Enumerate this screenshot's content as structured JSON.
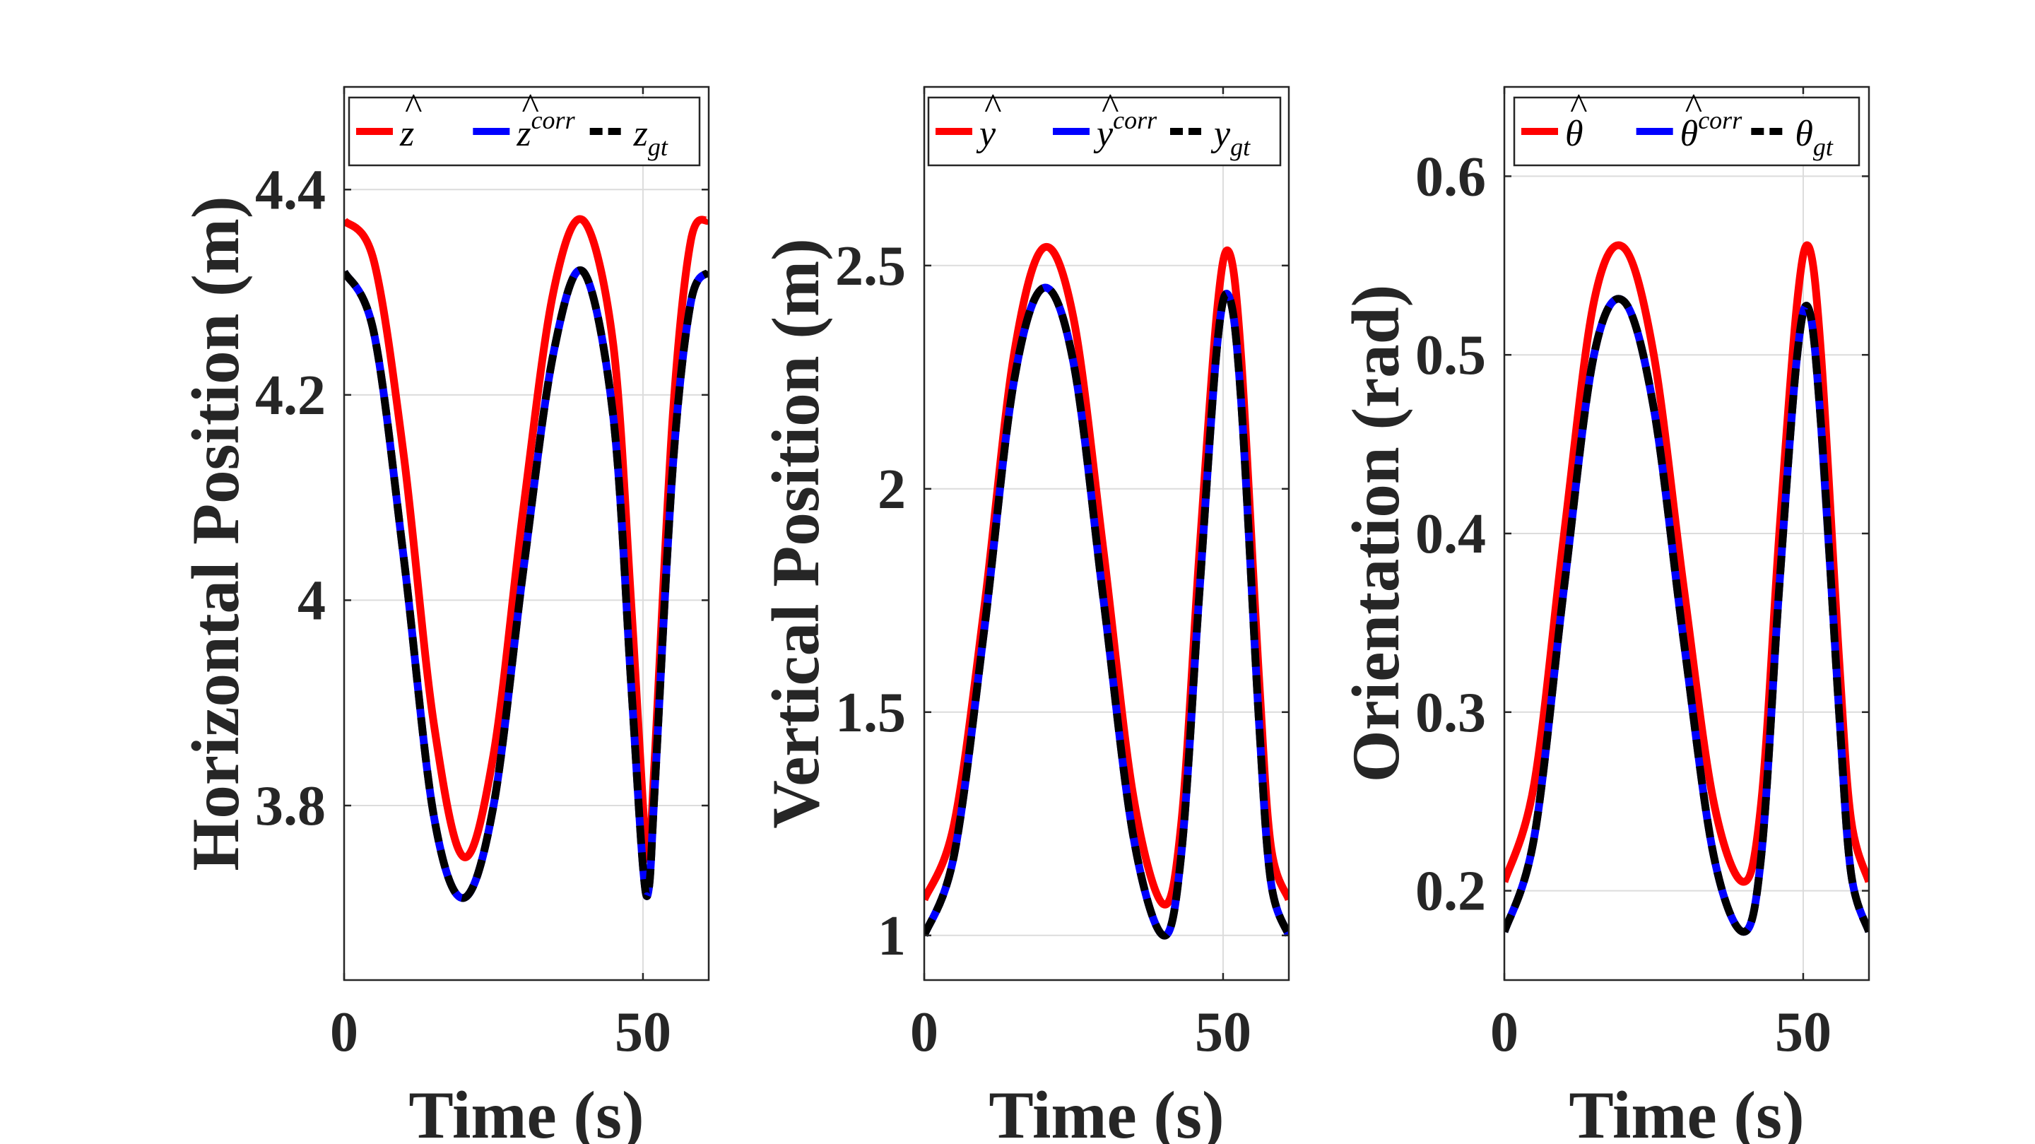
{
  "colors": {
    "estimate": "#ff0000",
    "corrected": "#0000ff",
    "ground_truth": "#000000"
  },
  "chart_data": [
    {
      "type": "line",
      "title": "",
      "xlabel": "Time (s)",
      "ylabel": "Horizontal Position (m)",
      "xlim": [
        0,
        61
      ],
      "ylim": [
        3.63,
        4.5
      ],
      "xticks": [
        0,
        50
      ],
      "xtick_labels": [
        "0",
        "50"
      ],
      "yticks": [
        3.8,
        4.0,
        4.2,
        4.4
      ],
      "ytick_labels": [
        "3.8",
        "4",
        "4.2",
        "4.4"
      ],
      "grid": true,
      "legend_position": "top",
      "legend": [
        {
          "base": "z",
          "sup": "",
          "sub": "",
          "hat": true
        },
        {
          "base": "z",
          "sup": "corr",
          "sub": "",
          "hat": true
        },
        {
          "base": "z",
          "sup": "",
          "sub": "gt",
          "hat": false
        }
      ],
      "series": [
        {
          "name": "z-hat",
          "role": "estimate",
          "dashed": false,
          "x": [
            0,
            5,
            10,
            15,
            20,
            25,
            30,
            35,
            40,
            45,
            48,
            50,
            51,
            52,
            55,
            58,
            61
          ],
          "y": [
            4.37,
            4.33,
            4.14,
            3.88,
            3.75,
            3.85,
            4.09,
            4.3,
            4.37,
            4.25,
            4.0,
            3.8,
            3.75,
            3.85,
            4.18,
            4.35,
            4.37
          ]
        },
        {
          "name": "z-hat-corr",
          "role": "corrected",
          "dashed": false,
          "x": [
            0,
            5,
            10,
            15,
            20,
            25,
            30,
            35,
            40,
            45,
            48,
            50,
            51,
            52,
            55,
            58,
            61
          ],
          "y": [
            4.32,
            4.26,
            4.04,
            3.79,
            3.71,
            3.8,
            4.03,
            4.24,
            4.32,
            4.18,
            3.92,
            3.74,
            3.72,
            3.82,
            4.13,
            4.29,
            4.32
          ]
        },
        {
          "name": "z-gt",
          "role": "ground_truth",
          "dashed": true,
          "x": [
            0,
            5,
            10,
            15,
            20,
            25,
            30,
            35,
            40,
            45,
            48,
            50,
            51,
            52,
            55,
            58,
            61
          ],
          "y": [
            4.32,
            4.26,
            4.04,
            3.79,
            3.71,
            3.8,
            4.03,
            4.24,
            4.32,
            4.18,
            3.92,
            3.74,
            3.72,
            3.82,
            4.13,
            4.29,
            4.32
          ]
        }
      ]
    },
    {
      "type": "line",
      "title": "",
      "xlabel": "Time (s)",
      "ylabel": "Vertical Position (m)",
      "xlim": [
        0,
        61
      ],
      "ylim": [
        0.9,
        2.9
      ],
      "xticks": [
        0,
        50
      ],
      "xtick_labels": [
        "0",
        "50"
      ],
      "yticks": [
        1.0,
        1.5,
        2.0,
        2.5
      ],
      "ytick_labels": [
        "1",
        "1.5",
        "2",
        "2.5"
      ],
      "grid": true,
      "legend_position": "top",
      "legend": [
        {
          "base": "y",
          "sup": "",
          "sub": "",
          "hat": true
        },
        {
          "base": "y",
          "sup": "corr",
          "sub": "",
          "hat": true
        },
        {
          "base": "y",
          "sup": "",
          "sub": "gt",
          "hat": false
        }
      ],
      "series": [
        {
          "name": "y-hat",
          "role": "estimate",
          "dashed": false,
          "x": [
            0,
            5,
            10,
            15,
            20,
            25,
            30,
            35,
            40,
            43,
            46,
            49,
            51,
            53,
            56,
            58,
            61
          ],
          "y": [
            1.08,
            1.25,
            1.73,
            2.3,
            2.54,
            2.38,
            1.86,
            1.31,
            1.07,
            1.25,
            1.85,
            2.4,
            2.53,
            2.3,
            1.58,
            1.2,
            1.08
          ]
        },
        {
          "name": "y-hat-corr",
          "role": "corrected",
          "dashed": false,
          "x": [
            0,
            5,
            10,
            15,
            20,
            25,
            30,
            35,
            40,
            43,
            46,
            49,
            51,
            53,
            56,
            58,
            61
          ],
          "y": [
            1.0,
            1.18,
            1.68,
            2.24,
            2.45,
            2.28,
            1.75,
            1.22,
            1.0,
            1.18,
            1.76,
            2.32,
            2.43,
            2.2,
            1.48,
            1.12,
            1.0
          ]
        },
        {
          "name": "y-gt",
          "role": "ground_truth",
          "dashed": true,
          "x": [
            0,
            5,
            10,
            15,
            20,
            25,
            30,
            35,
            40,
            43,
            46,
            49,
            51,
            53,
            56,
            58,
            61
          ],
          "y": [
            1.0,
            1.18,
            1.68,
            2.24,
            2.45,
            2.28,
            1.75,
            1.22,
            1.0,
            1.18,
            1.76,
            2.32,
            2.43,
            2.2,
            1.48,
            1.12,
            1.0
          ]
        }
      ]
    },
    {
      "type": "line",
      "title": "",
      "xlabel": "Time (s)",
      "ylabel": "Orientation (rad)",
      "xlim": [
        0,
        61
      ],
      "ylim": [
        0.15,
        0.65
      ],
      "xticks": [
        0,
        50
      ],
      "xtick_labels": [
        "0",
        "50"
      ],
      "yticks": [
        0.2,
        0.3,
        0.4,
        0.5,
        0.6
      ],
      "ytick_labels": [
        "0.2",
        "0.3",
        "0.4",
        "0.5",
        "0.6"
      ],
      "grid": true,
      "legend_position": "top",
      "legend": [
        {
          "base": "θ",
          "sup": "",
          "sub": "",
          "hat": true
        },
        {
          "base": "θ",
          "sup": "corr",
          "sub": "",
          "hat": true
        },
        {
          "base": "θ",
          "sup": "",
          "sub": "gt",
          "hat": false
        }
      ],
      "series": [
        {
          "name": "theta-hat",
          "role": "estimate",
          "dashed": false,
          "x": [
            0,
            5,
            10,
            15,
            20,
            25,
            30,
            35,
            40,
            43,
            46,
            49,
            51,
            53,
            56,
            58,
            61
          ],
          "y": [
            0.205,
            0.26,
            0.4,
            0.53,
            0.56,
            0.5,
            0.37,
            0.25,
            0.205,
            0.25,
            0.4,
            0.53,
            0.56,
            0.5,
            0.33,
            0.24,
            0.205
          ]
        },
        {
          "name": "theta-hat-corr",
          "role": "corrected",
          "dashed": false,
          "x": [
            0,
            5,
            10,
            15,
            20,
            25,
            30,
            35,
            40,
            43,
            46,
            49,
            51,
            53,
            56,
            58,
            61
          ],
          "y": [
            0.177,
            0.23,
            0.37,
            0.5,
            0.53,
            0.47,
            0.34,
            0.22,
            0.177,
            0.22,
            0.37,
            0.5,
            0.525,
            0.46,
            0.3,
            0.21,
            0.177
          ]
        },
        {
          "name": "theta-gt",
          "role": "ground_truth",
          "dashed": true,
          "x": [
            0,
            5,
            10,
            15,
            20,
            25,
            30,
            35,
            40,
            43,
            46,
            49,
            51,
            53,
            56,
            58,
            61
          ],
          "y": [
            0.177,
            0.23,
            0.37,
            0.5,
            0.53,
            0.47,
            0.34,
            0.22,
            0.177,
            0.22,
            0.37,
            0.5,
            0.525,
            0.46,
            0.3,
            0.21,
            0.177
          ]
        }
      ]
    }
  ]
}
